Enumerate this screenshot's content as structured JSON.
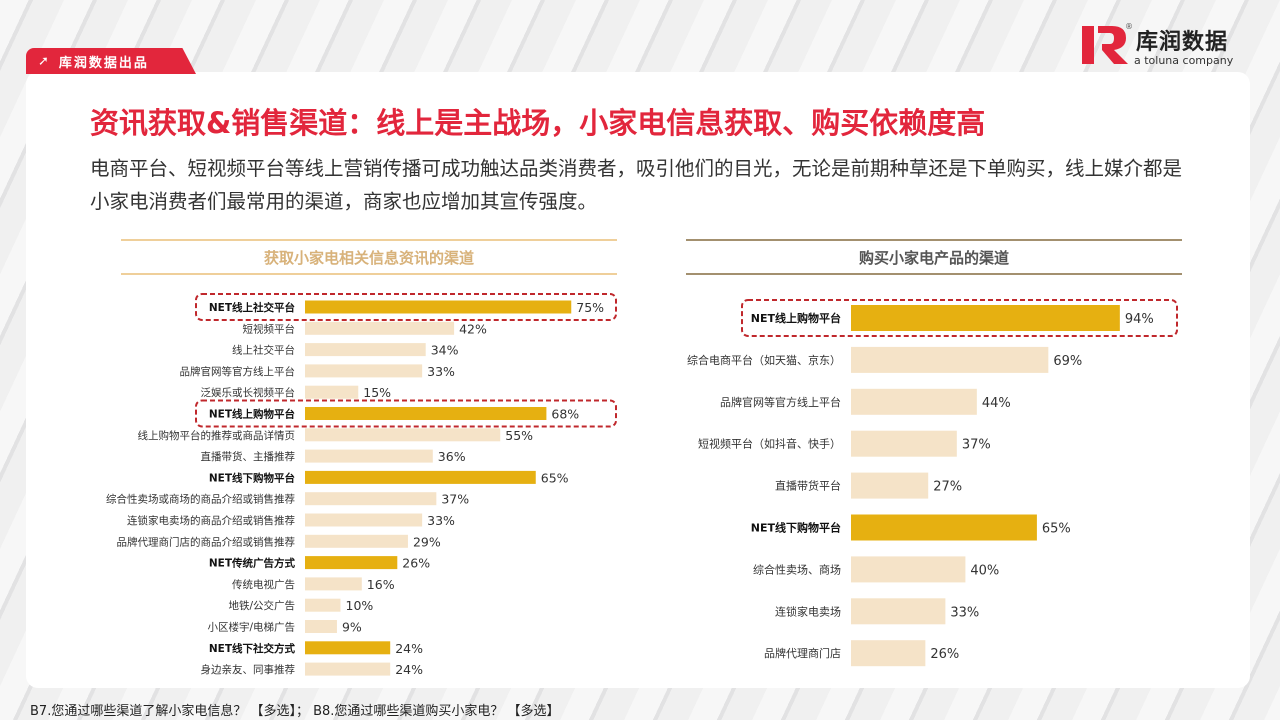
{
  "header": {
    "badge_label": "库润数据出品",
    "badge_icon": "arrow-up-right-icon",
    "logo_name": "库润数据",
    "logo_sub": "a toluna company",
    "logo_registered": "®",
    "title": "资讯获取&销售渠道：线上是主战场，小家电信息获取、购买依赖度高",
    "subtitle": "电商平台、短视频平台等线上营销传播可成功触达品类消费者，吸引他们的目光，无论是前期种草还是下单购买，线上媒介都是小家电消费者们最常用的渠道，商家也应增加其宣传强度。"
  },
  "colors": {
    "accent": "#e2263c",
    "net_bar": "#e6b011",
    "sub_bar": "#f5e3c8",
    "highlight_border": "#c0282c"
  },
  "chart_data": [
    {
      "type": "bar",
      "orientation": "horizontal",
      "title": "获取小家电相关信息资讯的渠道",
      "xlim": [
        0,
        100
      ],
      "unit": "%",
      "categories": [
        "NET线上社交平台",
        "短视频平台",
        "线上社交平台",
        "品牌官网等官方线上平台",
        "泛娱乐或长视频平台",
        "NET线上购物平台",
        "线上购物平台的推荐或商品详情页",
        "直播带货、主播推荐",
        "NET线下购物平台",
        "综合性卖场或商场的商品介绍或销售推荐",
        "连锁家电卖场的商品介绍或销售推荐",
        "品牌代理商门店的商品介绍或销售推荐",
        "NET传统广告方式",
        "传统电视广告",
        "地铁/公交广告",
        "小区楼宇/电梯广告",
        "NET线下社交方式",
        "身边亲友、同事推荐"
      ],
      "values": [
        75,
        42,
        34,
        33,
        15,
        68,
        55,
        36,
        65,
        37,
        33,
        29,
        26,
        16,
        10,
        9,
        24,
        24
      ],
      "is_net": [
        true,
        false,
        false,
        false,
        false,
        true,
        false,
        false,
        true,
        false,
        false,
        false,
        true,
        false,
        false,
        false,
        true,
        false
      ],
      "highlighted": [
        true,
        false,
        false,
        false,
        false,
        true,
        false,
        false,
        false,
        false,
        false,
        false,
        false,
        false,
        false,
        false,
        false,
        false
      ]
    },
    {
      "type": "bar",
      "orientation": "horizontal",
      "title": "购买小家电产品的渠道",
      "xlim": [
        0,
        100
      ],
      "unit": "%",
      "categories": [
        "NET线上购物平台",
        "综合电商平台（如天猫、京东）",
        "品牌官网等官方线上平台",
        "短视频平台（如抖音、快手）",
        "直播带货平台",
        "NET线下购物平台",
        "综合性卖场、商场",
        "连锁家电卖场",
        "品牌代理商门店"
      ],
      "values": [
        94,
        69,
        44,
        37,
        27,
        65,
        40,
        33,
        26
      ],
      "is_net": [
        true,
        false,
        false,
        false,
        false,
        true,
        false,
        false,
        false
      ],
      "highlighted": [
        true,
        false,
        false,
        false,
        false,
        false,
        false,
        false,
        false
      ]
    }
  ],
  "footnote": "B7.您通过哪些渠道了解小家电信息？ 【多选】； B8.您通过哪些渠道购买小家电？ 【多选】"
}
